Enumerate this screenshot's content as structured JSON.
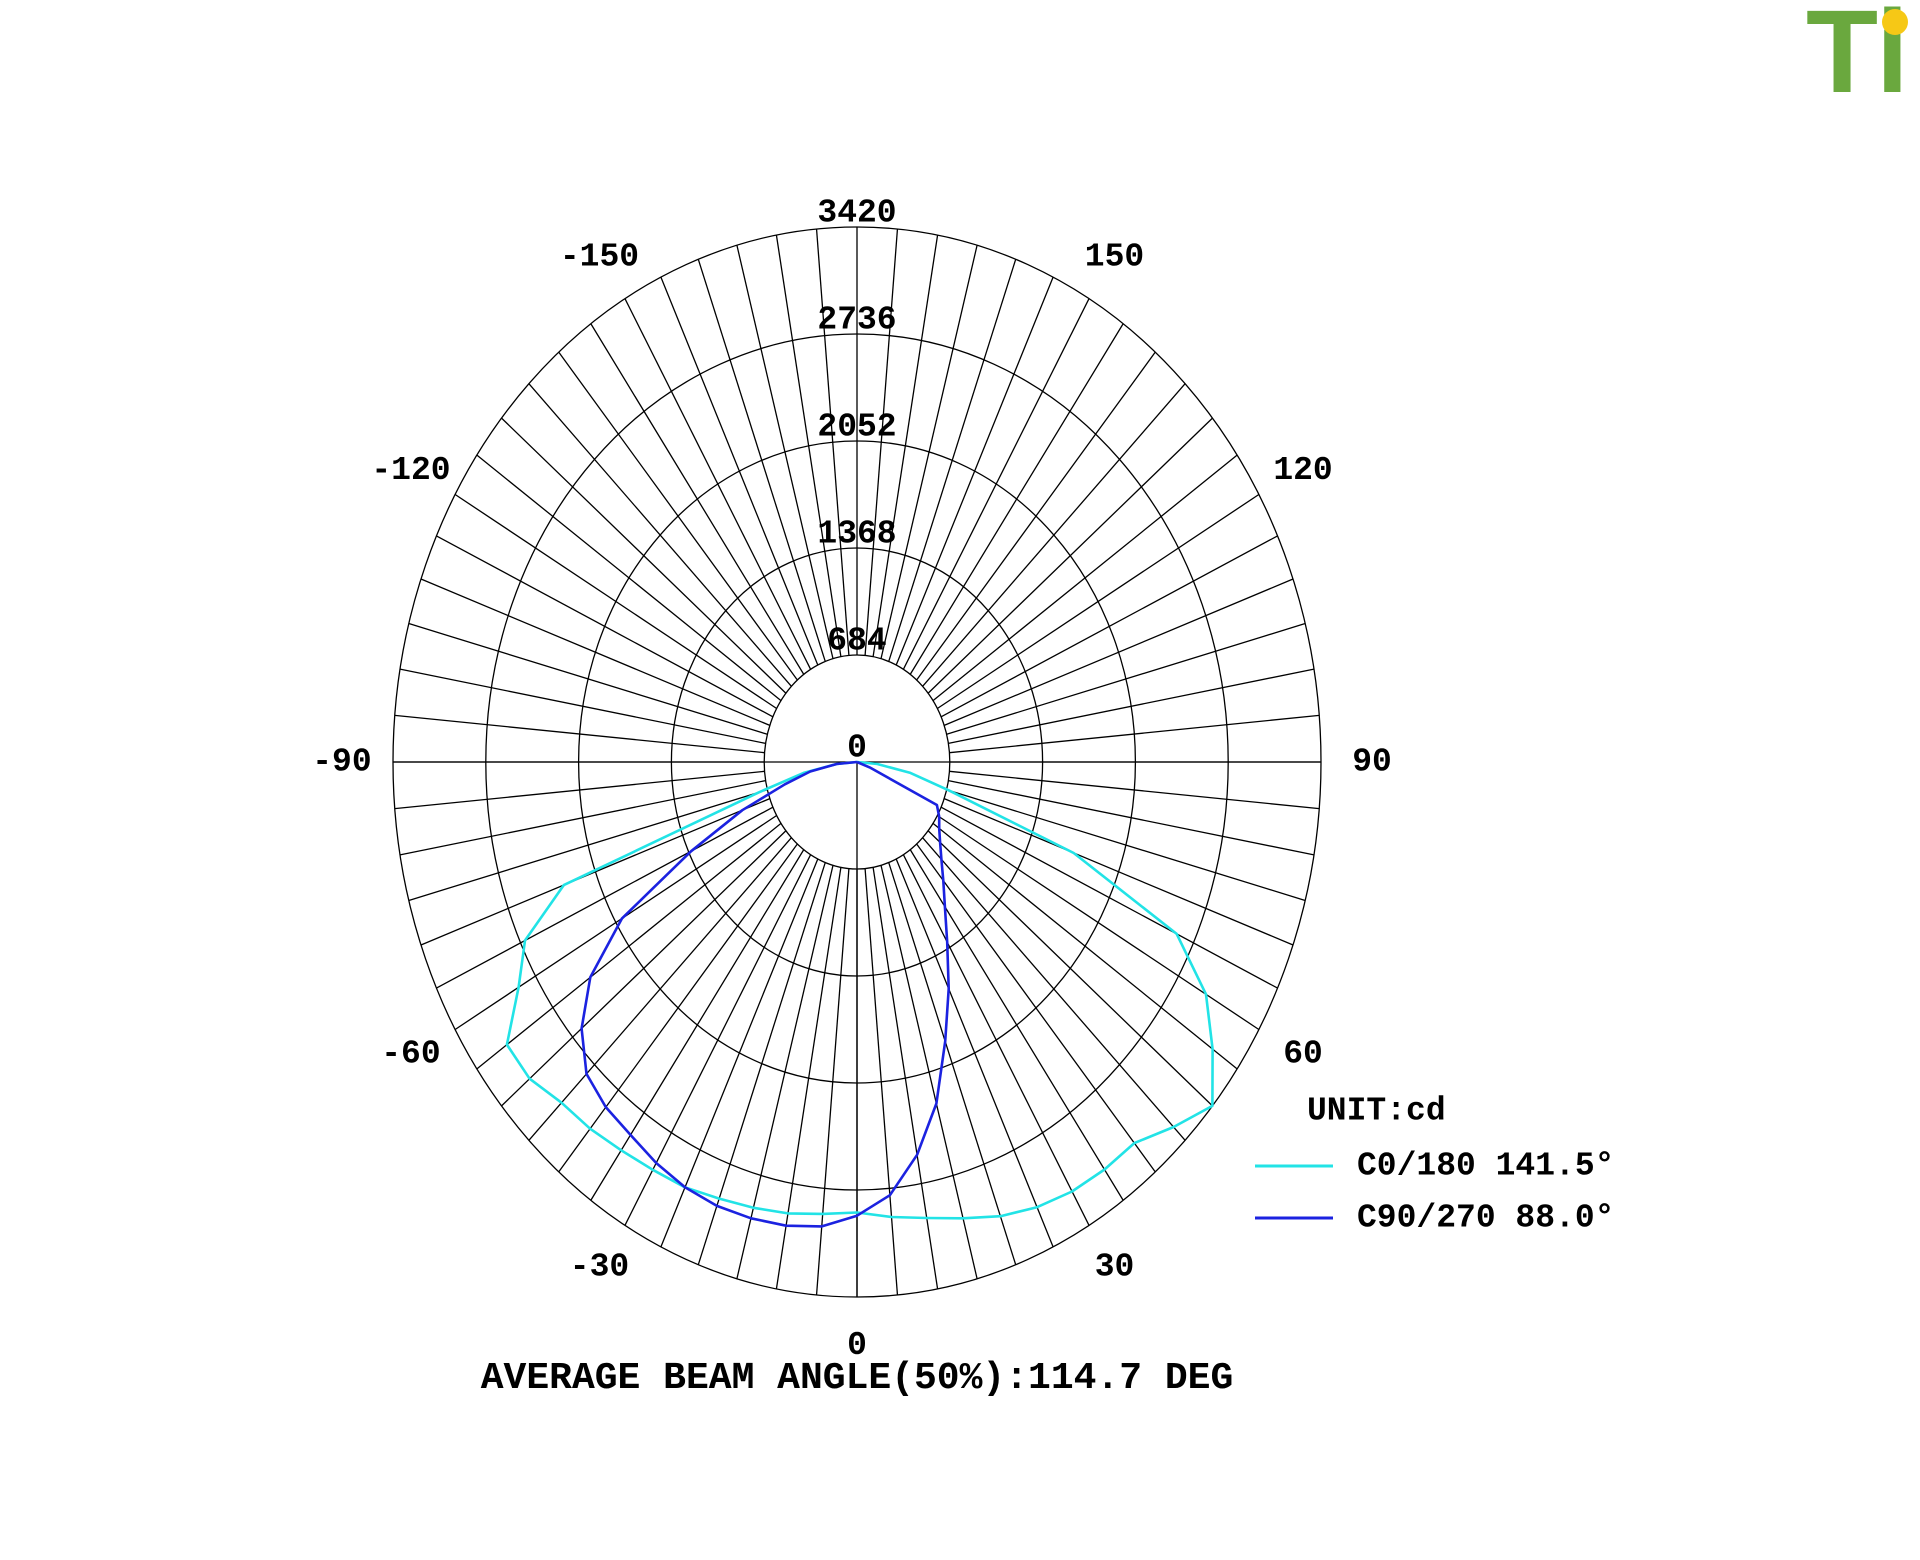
{
  "logo": "Ti",
  "chart_data": {
    "type": "polar",
    "rlim": [
      0,
      3420
    ],
    "rticks": [
      0,
      684,
      1368,
      2052,
      2736,
      3420
    ],
    "angle_ticks": [
      0,
      30,
      60,
      90,
      120,
      150,
      -150,
      -120,
      -90,
      -60,
      -30
    ],
    "angles": [
      -90,
      -85,
      -80,
      -75,
      -70,
      -65,
      -60,
      -55,
      -50,
      -45,
      -40,
      -35,
      -30,
      -25,
      -20,
      -15,
      -10,
      -5,
      0,
      5,
      10,
      15,
      20,
      25,
      30,
      35,
      40,
      45,
      50,
      55,
      60,
      65,
      70,
      75,
      80,
      85,
      90
    ],
    "series": [
      {
        "name": "C0/180 141.5°",
        "color": "#22e3e6",
        "values": [
          0,
          150,
          400,
          750,
          2300,
          2700,
          2880,
          3150,
          3150,
          3080,
          3060,
          3030,
          3010,
          3000,
          2970,
          2950,
          2930,
          2900,
          2880,
          2920,
          2960,
          3020,
          3090,
          3140,
          3170,
          3180,
          3180,
          3300,
          3420,
          3200,
          2970,
          2600,
          1700,
          700,
          400,
          150,
          0
        ]
      },
      {
        "name": "C90/270 88.0°",
        "color": "#1b22e0",
        "values": [
          0,
          150,
          350,
          550,
          900,
          1350,
          2000,
          2400,
          2650,
          2820,
          2880,
          2910,
          2960,
          3000,
          3020,
          3020,
          3010,
          2980,
          2900,
          2780,
          2550,
          2260,
          1900,
          1600,
          1330,
          1130,
          990,
          880,
          800,
          740,
          700,
          650,
          100,
          0,
          0,
          0,
          0
        ]
      }
    ],
    "unit_label": "UNIT:cd",
    "footnote": "AVERAGE BEAM ANGLE(50%):114.7 DEG"
  }
}
